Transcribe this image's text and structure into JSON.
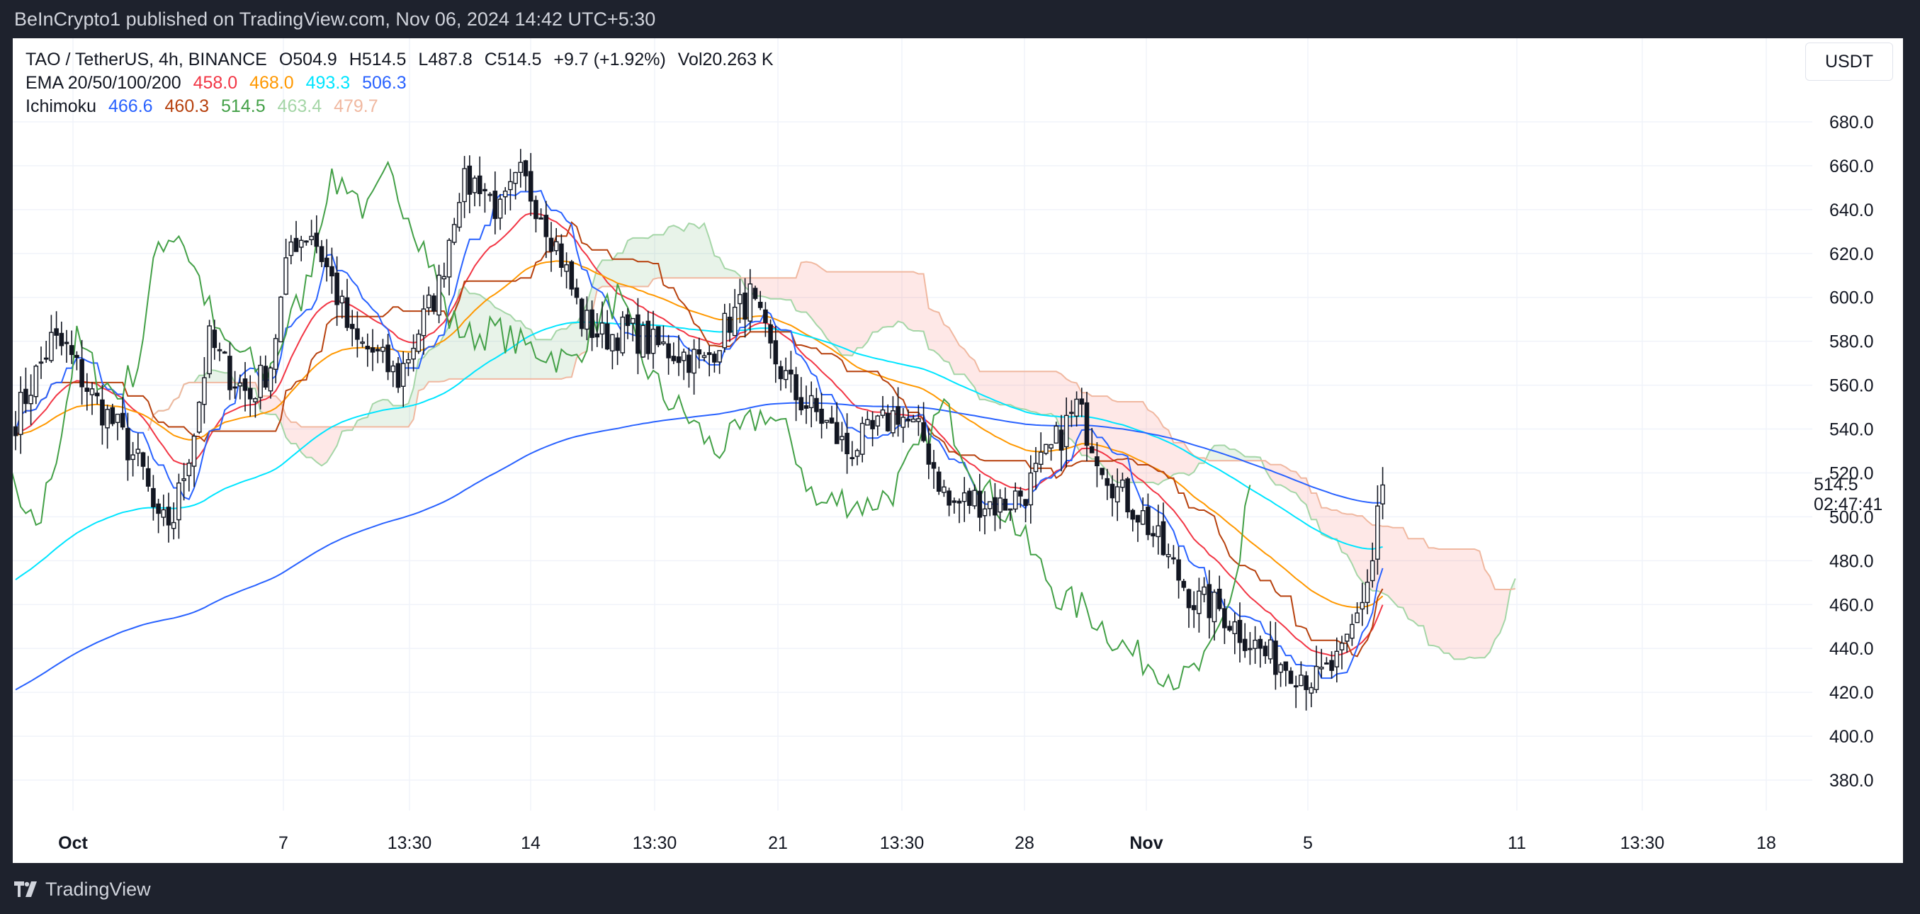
{
  "header": {
    "published": "BeInCrypto1 published on TradingView.com, Nov 06, 2024 14:42 UTC+5:30"
  },
  "legend": {
    "symbol_line": "TAO / TetherUS, 4h, BINANCE",
    "open": "O504.9",
    "high": "H514.5",
    "low": "L487.8",
    "close": "C514.5",
    "change": "+9.7 (+1.92%)",
    "volume": "Vol20.263 K",
    "ema_label": "EMA 20/50/100/200",
    "ema_values": [
      {
        "value": "458.0",
        "color": "#f23645"
      },
      {
        "value": "468.0",
        "color": "#ff9800"
      },
      {
        "value": "493.3",
        "color": "#00e5ff"
      },
      {
        "value": "506.3",
        "color": "#2962ff"
      }
    ],
    "ichimoku_label": "Ichimoku",
    "ichimoku_values": [
      {
        "value": "466.6",
        "color": "#2962ff"
      },
      {
        "value": "460.3",
        "color": "#b7410e"
      },
      {
        "value": "514.5",
        "color": "#43a047"
      },
      {
        "value": "463.4",
        "color": "#a5d6a7"
      },
      {
        "value": "479.7",
        "color": "#f0b8a0"
      }
    ]
  },
  "currency_button": "USDT",
  "price_tag": {
    "price": "514.5",
    "countdown": "02:47:41"
  },
  "footer": {
    "brand": "TradingView"
  },
  "chart_data": {
    "type": "candlestick",
    "title": "TAO / TetherUS, 4h, BINANCE",
    "y_ticks": [
      380,
      400,
      420,
      440,
      460,
      480,
      500,
      520,
      540,
      560,
      580,
      600,
      620,
      640,
      660,
      680
    ],
    "y_tick_labels": [
      "380.0",
      "400.0",
      "420.0",
      "440.0",
      "460.0",
      "480.0",
      "500.0",
      "520.0",
      "540.0",
      "560.0",
      "580.0",
      "600.0",
      "620.0",
      "640.0",
      "660.0",
      "680.0"
    ],
    "x_tick_labels": [
      "Oct",
      "7",
      "13:30",
      "14",
      "13:30",
      "21",
      "13:30",
      "28",
      "Nov",
      "5",
      "11",
      "13:30",
      "18"
    ],
    "bar_count": 244,
    "future_bars": 24,
    "close_anchors": [
      [
        0,
        545
      ],
      [
        3,
        560
      ],
      [
        7,
        580
      ],
      [
        10,
        576
      ],
      [
        15,
        555
      ],
      [
        20,
        540
      ],
      [
        25,
        520
      ],
      [
        28,
        495
      ],
      [
        31,
        500
      ],
      [
        35,
        540
      ],
      [
        38,
        580
      ],
      [
        42,
        565
      ],
      [
        46,
        555
      ],
      [
        50,
        570
      ],
      [
        54,
        625
      ],
      [
        58,
        630
      ],
      [
        62,
        608
      ],
      [
        66,
        580
      ],
      [
        70,
        575
      ],
      [
        75,
        563
      ],
      [
        79,
        585
      ],
      [
        83,
        605
      ],
      [
        87,
        650
      ],
      [
        91,
        653
      ],
      [
        95,
        638
      ],
      [
        99,
        655
      ],
      [
        103,
        640
      ],
      [
        107,
        618
      ],
      [
        111,
        590
      ],
      [
        115,
        582
      ],
      [
        120,
        585
      ],
      [
        125,
        578
      ],
      [
        130,
        575
      ],
      [
        135,
        570
      ],
      [
        140,
        590
      ],
      [
        144,
        600
      ],
      [
        148,
        575
      ],
      [
        153,
        555
      ],
      [
        158,
        545
      ],
      [
        163,
        530
      ],
      [
        168,
        538
      ],
      [
        173,
        548
      ],
      [
        178,
        535
      ],
      [
        183,
        505
      ],
      [
        188,
        508
      ],
      [
        193,
        505
      ],
      [
        198,
        512
      ],
      [
        203,
        530
      ],
      [
        208,
        550
      ],
      [
        212,
        530
      ],
      [
        216,
        512
      ],
      [
        221,
        500
      ],
      [
        226,
        480
      ],
      [
        231,
        462
      ],
      [
        236,
        458
      ],
      [
        240,
        448
      ],
      [
        245,
        437
      ],
      [
        250,
        432
      ],
      [
        255,
        425
      ],
      [
        260,
        435
      ],
      [
        263,
        455
      ],
      [
        266,
        480
      ],
      [
        267,
        505
      ],
      [
        268,
        514.5
      ]
    ],
    "last_close": 514.5,
    "ema": [
      {
        "name": "EMA 20",
        "period": 20,
        "last": 458.0,
        "color": "#f23645"
      },
      {
        "name": "EMA 50",
        "period": 50,
        "last": 468.0,
        "color": "#ff9800"
      },
      {
        "name": "EMA 100",
        "period": 100,
        "last": 493.3,
        "color": "#00e5ff"
      },
      {
        "name": "EMA 200",
        "period": 200,
        "last": 506.3,
        "color": "#2962ff"
      }
    ],
    "ichimoku": {
      "conversion": 466.6,
      "base": 460.3,
      "lagging": 514.5,
      "lead_a": 463.4,
      "lead_b": 479.7
    }
  }
}
